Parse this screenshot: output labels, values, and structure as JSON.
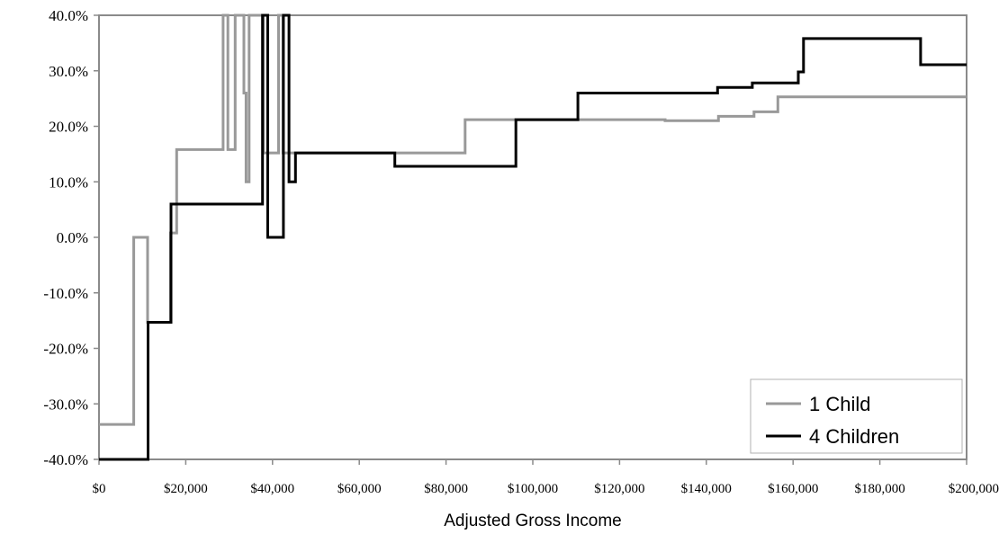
{
  "chart_data": {
    "type": "line",
    "title": "",
    "xlabel": "Adjusted Gross Income",
    "ylabel": "",
    "xlim": [
      0,
      200000
    ],
    "ylim": [
      -40,
      40
    ],
    "x_ticks": [
      0,
      20000,
      40000,
      60000,
      80000,
      100000,
      120000,
      140000,
      160000,
      180000,
      200000
    ],
    "x_tick_labels": [
      "$0",
      "$20,000",
      "$40,000",
      "$60,000",
      "$80,000",
      "$100,000",
      "$120,000",
      "$140,000",
      "$160,000",
      "$180,000",
      "$200,000"
    ],
    "y_ticks": [
      40,
      30,
      20,
      10,
      0,
      -10,
      -20,
      -30,
      -40
    ],
    "y_tick_labels": [
      "40.0%",
      "30.0%",
      "20.0%",
      "10.0%",
      "0.0%",
      "-10.0%",
      "-20.0%",
      "-30.0%",
      "-40.0%"
    ],
    "grid": false,
    "legend_position": "bottom-right",
    "series": [
      {
        "name": "1 Child",
        "color": "#999999",
        "step_points": [
          [
            0,
            -33.7
          ],
          [
            8000,
            -33.7
          ],
          [
            8000,
            0
          ],
          [
            11200,
            0
          ],
          [
            11200,
            -15.3
          ],
          [
            16500,
            -15.3
          ],
          [
            16500,
            0.8
          ],
          [
            17900,
            0.8
          ],
          [
            17900,
            15.8
          ],
          [
            28600,
            15.8
          ],
          [
            28600,
            40
          ],
          [
            29700,
            40
          ],
          [
            29700,
            15.8
          ],
          [
            31400,
            15.8
          ],
          [
            31400,
            40
          ],
          [
            33400,
            40
          ],
          [
            33400,
            26
          ],
          [
            33900,
            26
          ],
          [
            33900,
            10
          ],
          [
            34600,
            10
          ],
          [
            34600,
            40
          ],
          [
            37900,
            40
          ],
          [
            37900,
            15.2
          ],
          [
            41400,
            15.2
          ],
          [
            41400,
            40
          ],
          [
            42400,
            40
          ],
          [
            42400,
            15.2
          ],
          [
            84400,
            15.2
          ],
          [
            84400,
            21.2
          ],
          [
            130500,
            21.2
          ],
          [
            130500,
            21
          ],
          [
            142800,
            21
          ],
          [
            142800,
            21.8
          ],
          [
            151000,
            21.8
          ],
          [
            151000,
            22.6
          ],
          [
            156500,
            22.6
          ],
          [
            156500,
            25.3
          ],
          [
            200000,
            25.3
          ]
        ]
      },
      {
        "name": "4 Children",
        "color": "#000000",
        "step_points": [
          [
            0,
            -40
          ],
          [
            11300,
            -40
          ],
          [
            11300,
            -15.3
          ],
          [
            16600,
            -15.3
          ],
          [
            16600,
            6
          ],
          [
            37700,
            6
          ],
          [
            37700,
            40
          ],
          [
            38900,
            40
          ],
          [
            38900,
            0
          ],
          [
            42500,
            0
          ],
          [
            42500,
            40
          ],
          [
            43800,
            40
          ],
          [
            43800,
            10
          ],
          [
            45300,
            10
          ],
          [
            45300,
            15.2
          ],
          [
            68200,
            15.2
          ],
          [
            68200,
            12.8
          ],
          [
            96100,
            12.8
          ],
          [
            96100,
            21.2
          ],
          [
            110400,
            21.2
          ],
          [
            110400,
            26
          ],
          [
            142600,
            26
          ],
          [
            142600,
            27
          ],
          [
            150600,
            27
          ],
          [
            150600,
            27.8
          ],
          [
            161200,
            27.8
          ],
          [
            161200,
            29.8
          ],
          [
            162400,
            29.8
          ],
          [
            162400,
            35.8
          ],
          [
            189400,
            35.8
          ],
          [
            189400,
            31.1
          ],
          [
            200000,
            31.1
          ]
        ]
      }
    ]
  }
}
